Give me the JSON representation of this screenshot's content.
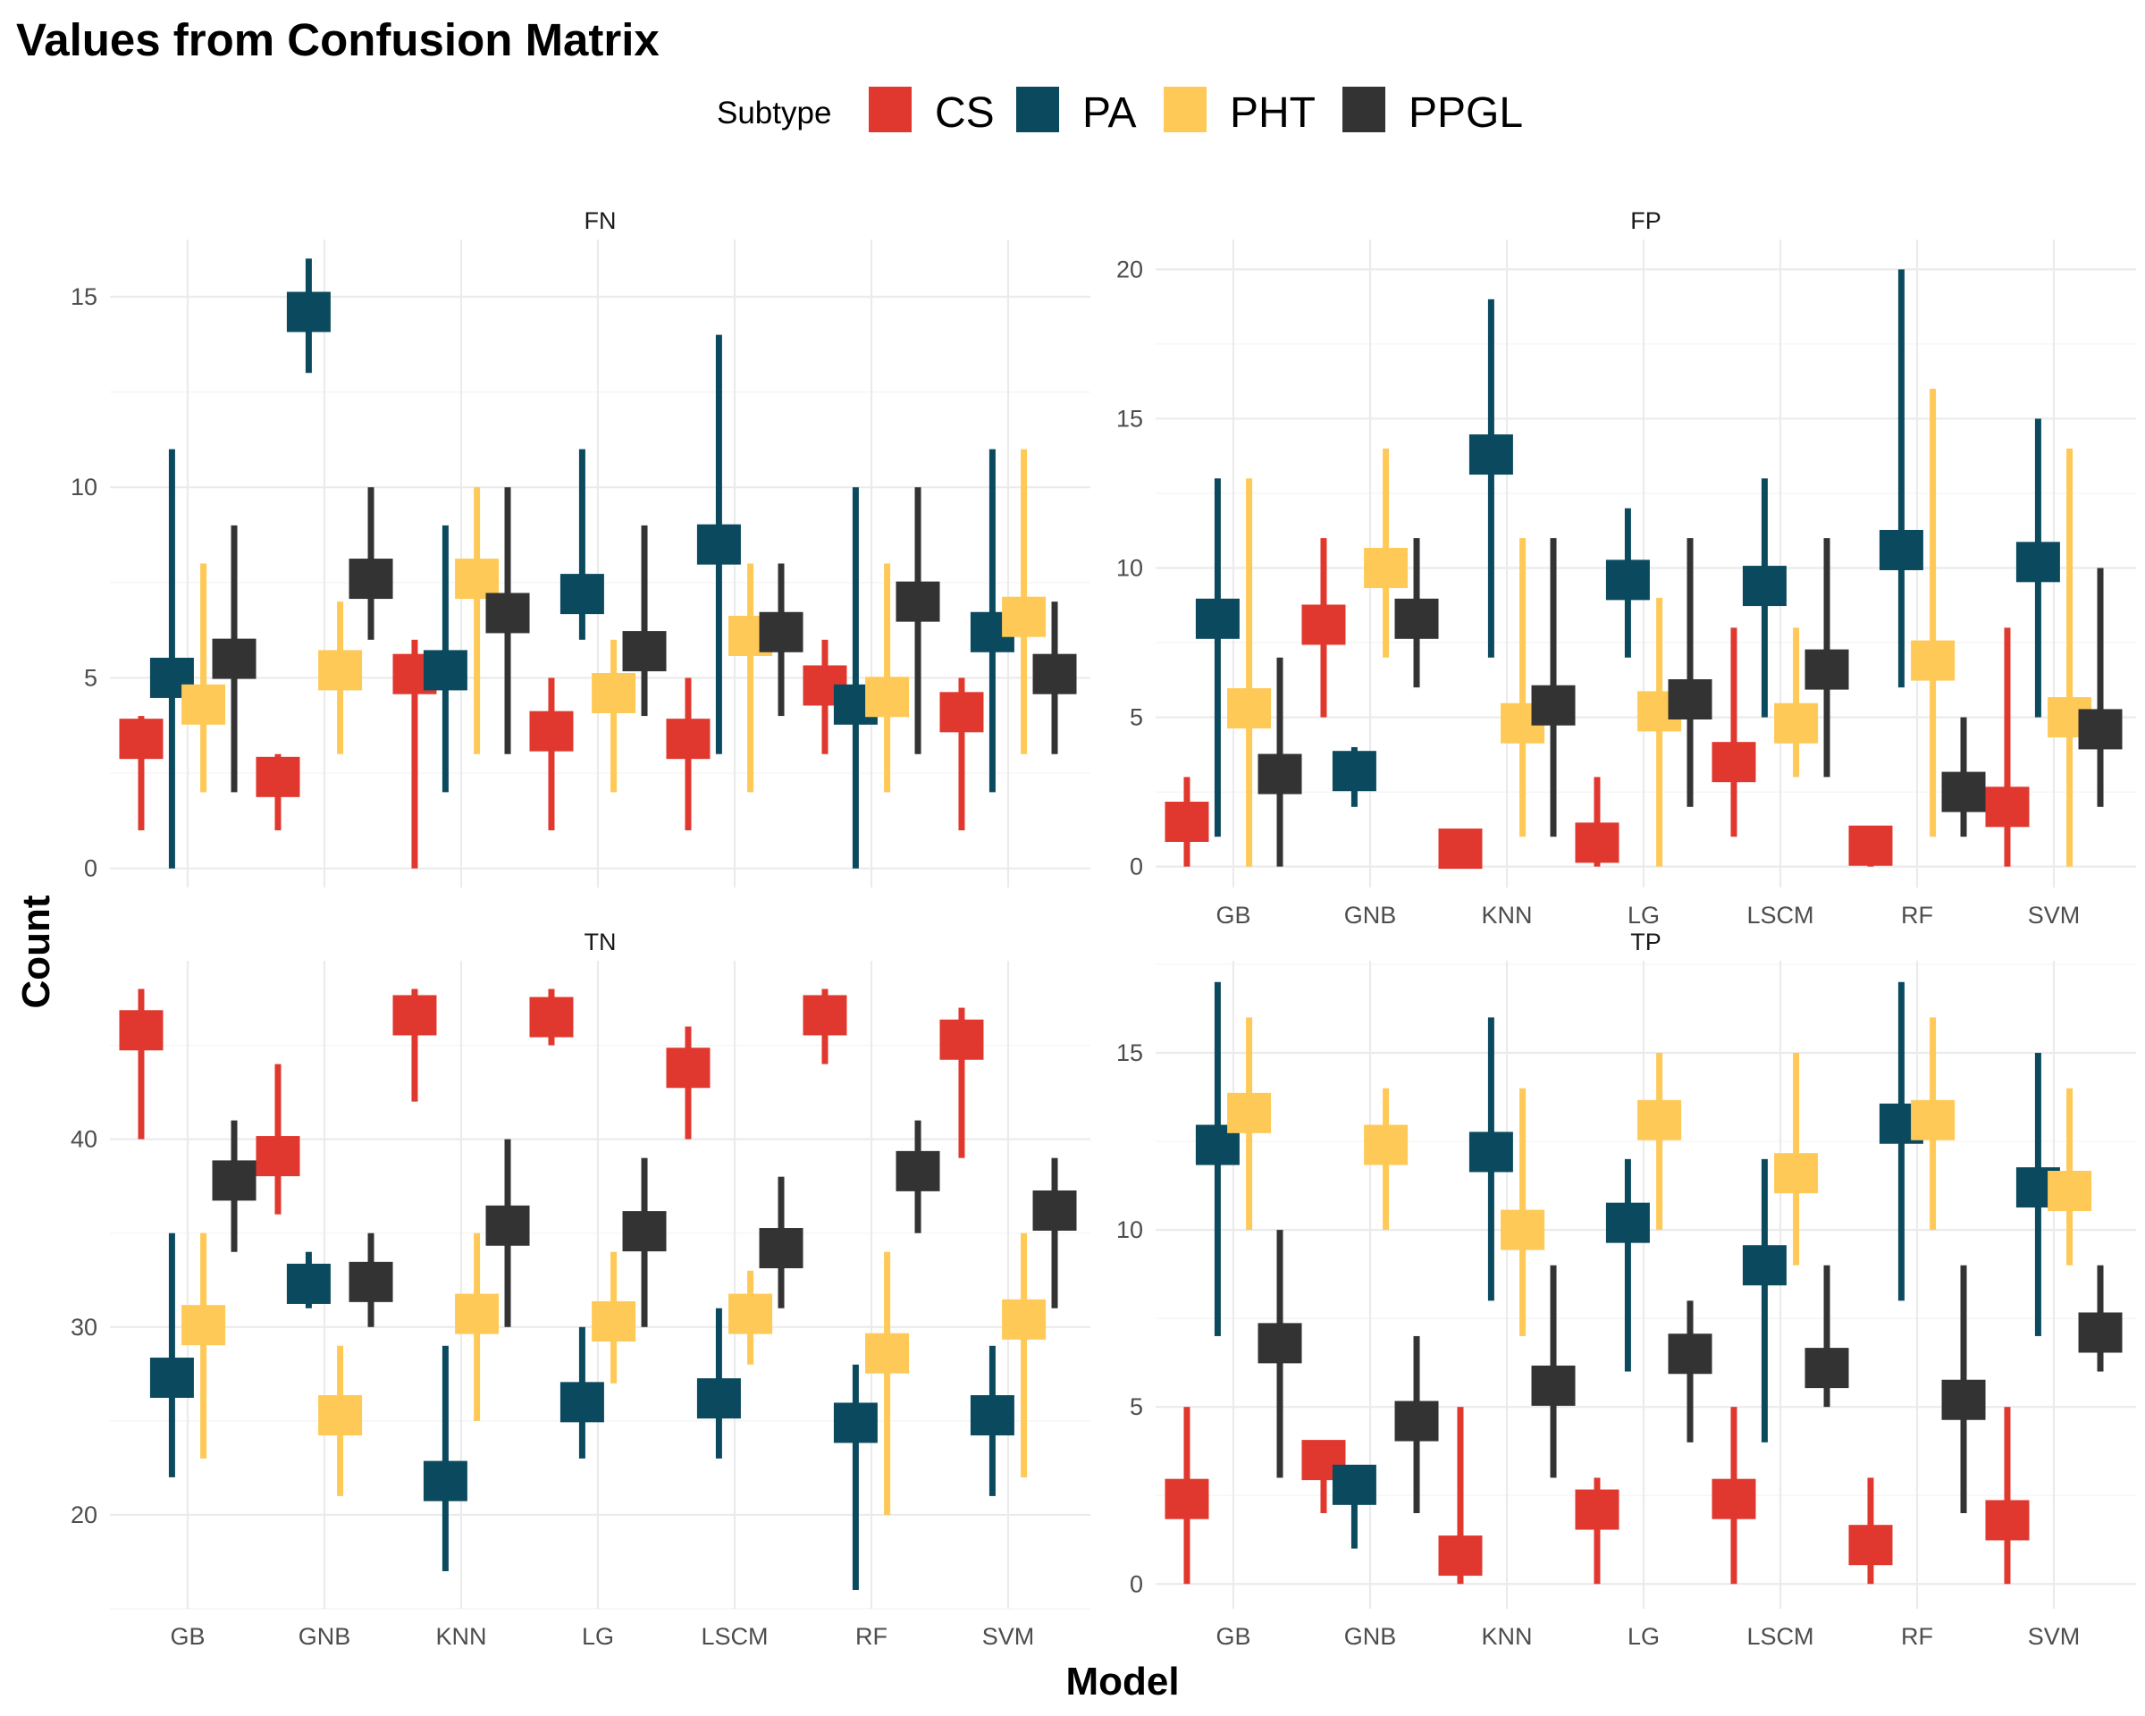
{
  "chart_data": {
    "type": "crossbar",
    "title": "Values from Confusion Matrix",
    "xlabel": "Model",
    "ylabel": "Count",
    "legend": {
      "title": "Subtype",
      "placement": "top",
      "entries": [
        {
          "name": "CS",
          "color": "#E0382F"
        },
        {
          "name": "PA",
          "color": "#0B4A5E"
        },
        {
          "name": "PHT",
          "color": "#FEC956"
        },
        {
          "name": "PPGL",
          "color": "#333333"
        }
      ]
    },
    "categories": [
      "GB",
      "GNB",
      "KNN",
      "LG",
      "LSCM",
      "RF",
      "SVM"
    ],
    "grid": true,
    "panels": [
      {
        "name": "FN",
        "ylim": [
          -0.5,
          16.5
        ],
        "yticks": [
          0,
          5,
          10,
          15
        ],
        "show_x_ticks": false,
        "series": [
          {
            "name": "CS",
            "mean": [
              3.4,
              2.4,
              5.1,
              3.6,
              3.4,
              4.8,
              4.1
            ],
            "min": [
              1,
              1,
              0,
              1,
              1,
              3,
              1
            ],
            "max": [
              4,
              3,
              6,
              5,
              5,
              6,
              5
            ]
          },
          {
            "name": "PA",
            "mean": [
              5.0,
              14.6,
              5.2,
              7.2,
              8.5,
              4.3,
              6.2
            ],
            "min": [
              0,
              13,
              2,
              6,
              3,
              0,
              2
            ],
            "max": [
              11,
              16,
              9,
              11,
              14,
              10,
              11
            ]
          },
          {
            "name": "PHT",
            "mean": [
              4.3,
              5.2,
              7.6,
              4.6,
              6.1,
              4.5,
              6.6
            ],
            "min": [
              2,
              3,
              3,
              2,
              2,
              2,
              3
            ],
            "max": [
              8,
              7,
              10,
              6,
              8,
              8,
              11
            ]
          },
          {
            "name": "PPGL",
            "mean": [
              5.5,
              7.6,
              6.7,
              5.7,
              6.2,
              7.0,
              5.1
            ],
            "min": [
              2,
              6,
              3,
              4,
              4,
              3,
              3
            ],
            "max": [
              9,
              10,
              10,
              9,
              8,
              10,
              7
            ]
          }
        ]
      },
      {
        "name": "FP",
        "ylim": [
          -0.7,
          21.0
        ],
        "yticks": [
          0,
          5,
          10,
          15,
          20
        ],
        "show_x_ticks": true,
        "series": [
          {
            "name": "CS",
            "mean": [
              1.5,
              8.1,
              0.6,
              0.8,
              3.5,
              0.7,
              2.0
            ],
            "min": [
              0,
              5,
              0,
              0,
              1,
              0,
              0
            ],
            "max": [
              3,
              11,
              1,
              3,
              8,
              1,
              8
            ]
          },
          {
            "name": "PA",
            "mean": [
              8.3,
              3.2,
              13.8,
              9.6,
              9.4,
              10.6,
              10.2
            ],
            "min": [
              1,
              2,
              7,
              7,
              5,
              6,
              5
            ],
            "max": [
              13,
              4,
              19,
              12,
              13,
              20,
              15
            ]
          },
          {
            "name": "PHT",
            "mean": [
              5.3,
              10.0,
              4.8,
              5.2,
              4.8,
              6.9,
              5.0
            ],
            "min": [
              0,
              7,
              1,
              0,
              3,
              1,
              0
            ],
            "max": [
              13,
              14,
              11,
              9,
              8,
              16,
              14
            ]
          },
          {
            "name": "PPGL",
            "mean": [
              3.1,
              8.3,
              5.4,
              5.6,
              6.6,
              2.5,
              4.6
            ],
            "min": [
              0,
              6,
              1,
              2,
              3,
              1,
              2
            ],
            "max": [
              7,
              11,
              11,
              11,
              11,
              5,
              10
            ]
          }
        ]
      },
      {
        "name": "TN",
        "ylim": [
          15.0,
          49.5
        ],
        "yticks": [
          20,
          30,
          40
        ],
        "show_x_ticks": true,
        "series": [
          {
            "name": "CS",
            "mean": [
              45.8,
              39.1,
              46.6,
              46.5,
              43.8,
              46.6,
              45.3
            ],
            "min": [
              40,
              36,
              42,
              45,
              40,
              44,
              39
            ],
            "max": [
              48,
              44,
              48,
              48,
              46,
              48,
              47
            ]
          },
          {
            "name": "PA",
            "mean": [
              27.3,
              32.3,
              21.8,
              26.0,
              26.2,
              24.9,
              25.3
            ],
            "min": [
              22,
              31,
              17,
              23,
              23,
              16,
              21
            ],
            "max": [
              35,
              34,
              29,
              30,
              31,
              28,
              29
            ]
          },
          {
            "name": "PHT",
            "mean": [
              30.1,
              25.3,
              30.7,
              30.3,
              30.7,
              28.6,
              30.4
            ],
            "min": [
              23,
              21,
              25,
              27,
              28,
              20,
              22
            ],
            "max": [
              35,
              29,
              35,
              34,
              33,
              34,
              35
            ]
          },
          {
            "name": "PPGL",
            "mean": [
              37.8,
              32.4,
              35.4,
              35.1,
              34.2,
              38.3,
              36.2
            ],
            "min": [
              34,
              30,
              30,
              30,
              31,
              35,
              31
            ],
            "max": [
              41,
              35,
              40,
              39,
              38,
              41,
              39
            ]
          }
        ]
      },
      {
        "name": "TP",
        "ylim": [
          -0.7,
          17.6
        ],
        "yticks": [
          0,
          5,
          10,
          15
        ],
        "show_x_ticks": true,
        "series": [
          {
            "name": "CS",
            "mean": [
              2.4,
              3.5,
              0.8,
              2.1,
              2.4,
              1.1,
              1.8
            ],
            "min": [
              0,
              2,
              0,
              0,
              0,
              0,
              0
            ],
            "max": [
              5,
              4,
              5,
              3,
              5,
              3,
              5
            ]
          },
          {
            "name": "PA",
            "mean": [
              12.4,
              2.8,
              12.2,
              10.2,
              9.0,
              13.0,
              11.2
            ],
            "min": [
              7,
              1,
              8,
              6,
              4,
              8,
              7
            ],
            "max": [
              17,
              3,
              16,
              12,
              12,
              17,
              15
            ]
          },
          {
            "name": "PHT",
            "mean": [
              13.3,
              12.4,
              10.0,
              13.1,
              11.6,
              13.1,
              11.1
            ],
            "min": [
              10,
              10,
              7,
              10,
              9,
              10,
              9
            ],
            "max": [
              16,
              14,
              14,
              15,
              15,
              16,
              14
            ]
          },
          {
            "name": "PPGL",
            "mean": [
              6.8,
              4.6,
              5.6,
              6.5,
              6.1,
              5.2,
              7.1
            ],
            "min": [
              3,
              2,
              3,
              4,
              5,
              2,
              6
            ],
            "max": [
              10,
              7,
              9,
              8,
              9,
              9,
              9
            ]
          }
        ]
      }
    ]
  }
}
